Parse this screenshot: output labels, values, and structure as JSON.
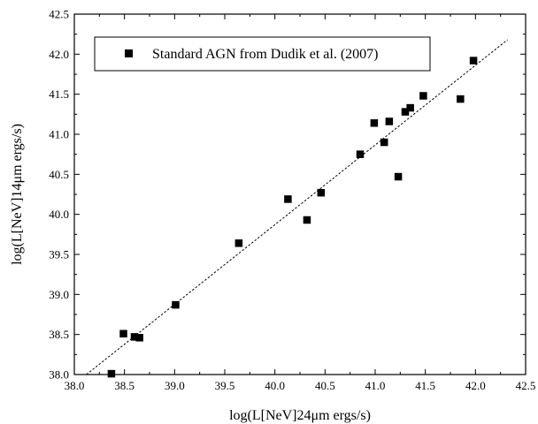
{
  "chart_data": {
    "type": "scatter",
    "xlabel": "log(L[NeV]24μm ergs/s)",
    "ylabel": "log(L[NeV]14μm ergs/s)",
    "xlim": [
      38.0,
      42.5
    ],
    "ylim": [
      38.0,
      42.5
    ],
    "xticks": [
      "38.0",
      "38.5",
      "39.0",
      "39.5",
      "40.0",
      "40.5",
      "41.0",
      "41.5",
      "42.0",
      "42.5"
    ],
    "yticks": [
      "38.0",
      "38.5",
      "39.0",
      "39.5",
      "40.0",
      "40.5",
      "41.0",
      "41.5",
      "42.0",
      "42.5"
    ],
    "grid": false,
    "legend_position": "top-left",
    "series": [
      {
        "name": "Standard AGN from Dudik et al. (2007)",
        "marker": "square",
        "color": "#000000",
        "points": [
          [
            38.37,
            38.01
          ],
          [
            38.49,
            38.51
          ],
          [
            38.6,
            38.47
          ],
          [
            38.65,
            38.46
          ],
          [
            39.01,
            38.87
          ],
          [
            39.64,
            39.64
          ],
          [
            40.13,
            40.19
          ],
          [
            40.32,
            39.93
          ],
          [
            40.46,
            40.27
          ],
          [
            40.85,
            40.75
          ],
          [
            40.99,
            41.14
          ],
          [
            41.09,
            40.9
          ],
          [
            41.14,
            41.16
          ],
          [
            41.23,
            40.47
          ],
          [
            41.3,
            41.28
          ],
          [
            41.35,
            41.33
          ],
          [
            41.48,
            41.48
          ],
          [
            41.85,
            41.44
          ],
          [
            41.98,
            41.92
          ]
        ]
      }
    ],
    "fit_line": {
      "style": "dashed",
      "from": [
        38.1,
        37.98
      ],
      "to": [
        42.32,
        42.18
      ]
    }
  }
}
